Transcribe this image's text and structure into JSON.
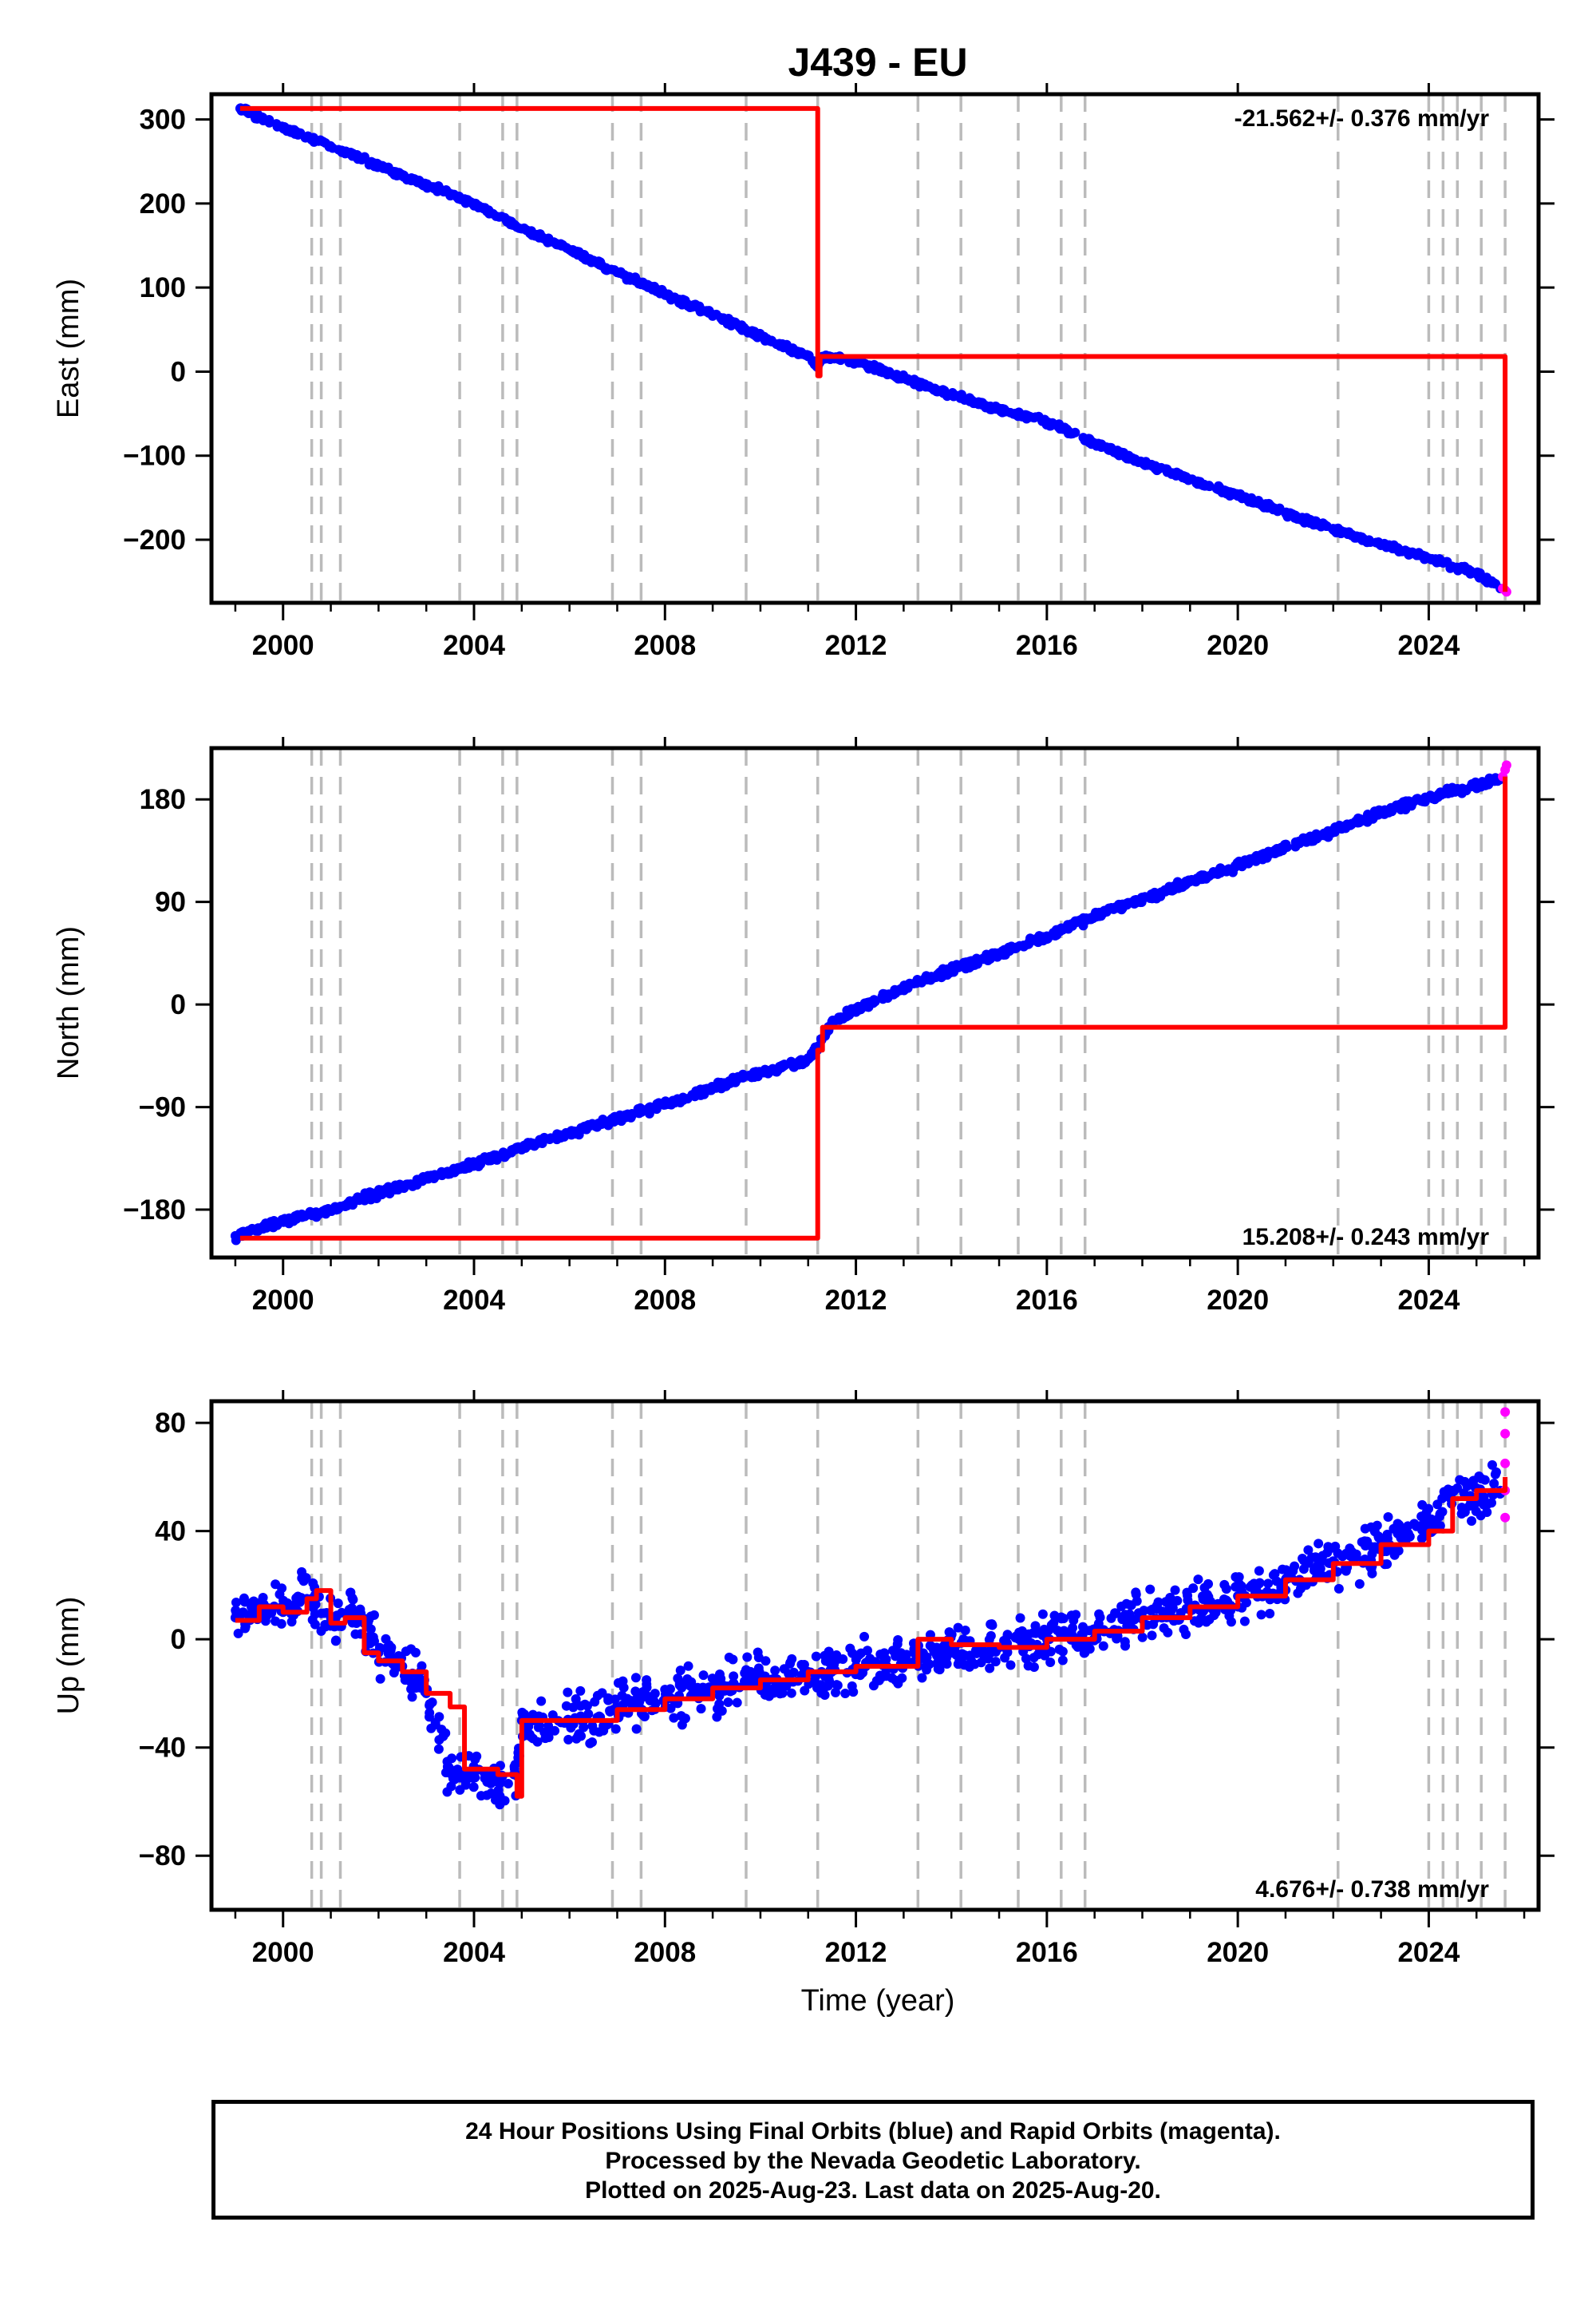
{
  "title": "J439 - EU",
  "xlabel": "Time (year)",
  "footer": {
    "line1": "24 Hour Positions Using Final Orbits (blue) and Rapid Orbits (magenta).",
    "line2": "Processed by the Nevada Geodetic Laboratory.",
    "line3": "Plotted on 2025-Aug-23. Last data on 2025-Aug-20."
  },
  "colors": {
    "final_orbits": "#0000ff",
    "rapid_orbits": "#ff00ff",
    "model": "#ff0000",
    "event_lines": "#bbbbbb"
  },
  "chart_data": [
    {
      "type": "scatter",
      "title": "J439 - EU",
      "ylabel": "East (mm)",
      "xlabel": "",
      "xlim": [
        1998.5,
        2026.3
      ],
      "ylim": [
        -275,
        330
      ],
      "x_ticks": [
        "2000",
        "2004",
        "2008",
        "2012",
        "2016",
        "2020",
        "2024"
      ],
      "y_ticks": [
        "300",
        "200",
        "100",
        "0",
        "−100",
        "−200"
      ],
      "y_tick_values": [
        300,
        200,
        100,
        0,
        -100,
        -200
      ],
      "rate_label": "-21.562+/- 0.376 mm/yr",
      "rate_position": "top-right",
      "event_lines": [
        2000.6,
        2000.8,
        2001.2,
        2003.7,
        2004.6,
        2004.9,
        2006.9,
        2007.5,
        2009.7,
        2011.2,
        2013.3,
        2014.2,
        2015.4,
        2016.3,
        2016.8,
        2022.1,
        2024.0,
        2024.3,
        2024.6,
        2025.1,
        2025.6
      ],
      "series": [
        {
          "name": "Final Orbits",
          "color": "#0000ff",
          "x": [
            1999.1,
            2000.0,
            2001.0,
            2002.0,
            2003.0,
            2004.0,
            2005.0,
            2006.0,
            2007.0,
            2008.0,
            2009.0,
            2010.0,
            2011.0,
            2011.2,
            2011.3,
            2012.0,
            2013.0,
            2014.0,
            2015.0,
            2016.0,
            2017.0,
            2018.0,
            2019.0,
            2020.0,
            2021.0,
            2022.0,
            2023.0,
            2024.0,
            2025.0,
            2025.5
          ],
          "y": [
            313,
            290,
            268,
            245,
            222,
            200,
            170,
            145,
            118,
            92,
            68,
            42,
            18,
            5,
            18,
            12,
            -8,
            -28,
            -45,
            -60,
            -85,
            -108,
            -128,
            -148,
            -168,
            -188,
            -205,
            -222,
            -240,
            -258
          ]
        },
        {
          "name": "Rapid Orbits",
          "color": "#ff00ff",
          "x": [
            2025.55,
            2025.6,
            2025.63
          ],
          "y": [
            -258,
            -260,
            -262
          ]
        },
        {
          "name": "Model",
          "color": "#ff0000",
          "x": [
            1999.1,
            2011.2,
            2011.25,
            2025.6
          ],
          "y": [
            313,
            -5,
            18,
            -262
          ]
        }
      ]
    },
    {
      "type": "scatter",
      "ylabel": "North (mm)",
      "xlabel": "",
      "xlim": [
        1998.5,
        2026.3
      ],
      "ylim": [
        -222,
        225
      ],
      "x_ticks": [
        "2000",
        "2004",
        "2008",
        "2012",
        "2016",
        "2020",
        "2024"
      ],
      "y_ticks": [
        "180",
        "90",
        "0",
        "−90",
        "−180"
      ],
      "y_tick_values": [
        180,
        90,
        0,
        -90,
        -180
      ],
      "rate_label": "15.208+/- 0.243 mm/yr",
      "rate_position": "bottom-right",
      "event_lines": [
        2000.6,
        2000.8,
        2001.2,
        2003.7,
        2004.6,
        2004.9,
        2006.9,
        2007.5,
        2009.7,
        2011.2,
        2013.3,
        2014.2,
        2015.4,
        2016.3,
        2016.8,
        2022.1,
        2024.0,
        2024.3,
        2024.6,
        2025.1,
        2025.6
      ],
      "series": [
        {
          "name": "Final Orbits",
          "color": "#0000ff",
          "x": [
            1999.0,
            2000.0,
            2001.0,
            2002.0,
            2003.0,
            2004.0,
            2005.0,
            2006.0,
            2007.0,
            2008.0,
            2009.0,
            2010.0,
            2011.0,
            2011.2,
            2011.5,
            2012.0,
            2013.0,
            2014.0,
            2015.0,
            2016.0,
            2017.0,
            2018.0,
            2019.0,
            2020.0,
            2021.0,
            2022.0,
            2023.0,
            2024.0,
            2025.0,
            2025.5
          ],
          "y": [
            -203,
            -190,
            -180,
            -165,
            -153,
            -140,
            -125,
            -113,
            -100,
            -88,
            -73,
            -60,
            -48,
            -38,
            -15,
            -5,
            15,
            30,
            45,
            60,
            78,
            92,
            108,
            122,
            138,
            152,
            168,
            182,
            192,
            198
          ]
        },
        {
          "name": "Rapid Orbits",
          "color": "#ff00ff",
          "x": [
            2025.55,
            2025.6,
            2025.63
          ],
          "y": [
            200,
            206,
            210
          ]
        },
        {
          "name": "Model",
          "color": "#ff0000",
          "x": [
            1999.1,
            2011.2,
            2011.3,
            2025.6
          ],
          "y": [
            -205,
            -40,
            -20,
            200
          ]
        }
      ]
    },
    {
      "type": "scatter",
      "ylabel": "Up (mm)",
      "xlabel": "Time (year)",
      "xlim": [
        1998.5,
        2026.3
      ],
      "ylim": [
        -100,
        88
      ],
      "x_ticks": [
        "2000",
        "2004",
        "2008",
        "2012",
        "2016",
        "2020",
        "2024"
      ],
      "y_ticks": [
        "80",
        "40",
        "0",
        "−40",
        "−80"
      ],
      "y_tick_values": [
        80,
        40,
        0,
        -40,
        -80
      ],
      "rate_label": "4.676+/- 0.738 mm/yr",
      "rate_position": "bottom-right",
      "event_lines": [
        2000.6,
        2000.8,
        2001.2,
        2003.7,
        2004.6,
        2004.9,
        2006.9,
        2007.5,
        2009.7,
        2011.2,
        2013.3,
        2014.2,
        2015.4,
        2016.3,
        2016.8,
        2022.1,
        2024.0,
        2024.3,
        2024.6,
        2025.1,
        2025.6
      ],
      "series": [
        {
          "name": "Final Orbits",
          "color": "#0000ff",
          "x": [
            1999.0,
            1999.5,
            2000.0,
            2000.5,
            2001.0,
            2001.5,
            2002.0,
            2002.5,
            2003.0,
            2003.5,
            2004.0,
            2004.5,
            2004.9,
            2005.0,
            2006.0,
            2007.0,
            2008.0,
            2009.0,
            2010.0,
            2011.0,
            2012.0,
            2013.0,
            2014.0,
            2015.0,
            2016.0,
            2017.0,
            2018.0,
            2019.0,
            2020.0,
            2021.0,
            2022.0,
            2023.0,
            2024.0,
            2024.5,
            2025.0,
            2025.5
          ],
          "y": [
            8,
            12,
            10,
            15,
            8,
            10,
            -5,
            -10,
            -20,
            -48,
            -50,
            -52,
            -50,
            -30,
            -30,
            -26,
            -22,
            -18,
            -15,
            -12,
            -10,
            -8,
            -5,
            -3,
            0,
            3,
            8,
            12,
            16,
            22,
            28,
            35,
            42,
            55,
            52,
            55
          ]
        },
        {
          "name": "Rapid Orbits",
          "color": "#ff00ff",
          "x": [
            2025.6,
            2025.6,
            2025.6,
            2025.6,
            2025.6
          ],
          "y": [
            84,
            76,
            65,
            55,
            45
          ]
        },
        {
          "name": "Model",
          "color": "#ff0000",
          "x": [
            1999.0,
            1999.5,
            2000.0,
            2000.5,
            2000.7,
            2001.0,
            2001.3,
            2001.7,
            2002.0,
            2002.5,
            2003.0,
            2003.5,
            2003.8,
            2004.5,
            2004.9,
            2005.0,
            2006.0,
            2007.0,
            2008.0,
            2009.0,
            2010.0,
            2011.0,
            2012.0,
            2013.0,
            2013.3,
            2014.0,
            2015.0,
            2016.0,
            2017.0,
            2018.0,
            2019.0,
            2020.0,
            2021.0,
            2022.0,
            2023.0,
            2024.0,
            2024.5,
            2025.0,
            2025.6
          ],
          "y": [
            7,
            12,
            10,
            15,
            18,
            6,
            8,
            -5,
            -8,
            -12,
            -20,
            -25,
            -48,
            -50,
            -58,
            -30,
            -30,
            -26,
            -22,
            -18,
            -15,
            -12,
            -10,
            -10,
            0,
            -2,
            -3,
            0,
            3,
            8,
            12,
            16,
            22,
            28,
            35,
            40,
            52,
            55,
            60
          ]
        }
      ]
    }
  ]
}
